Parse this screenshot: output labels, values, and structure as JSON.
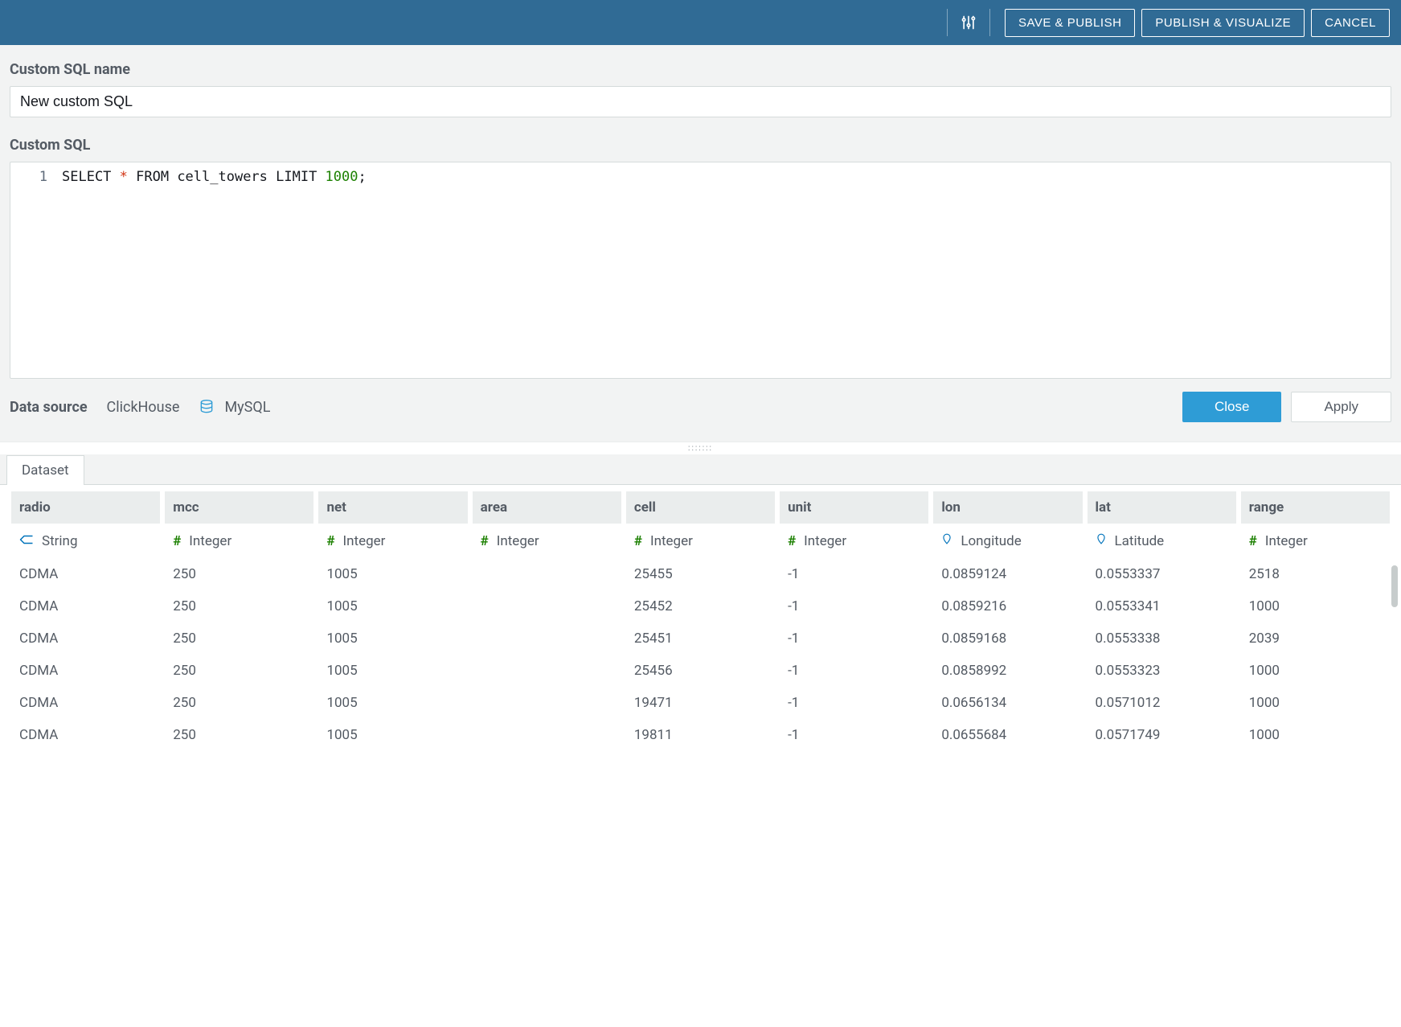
{
  "topbar": {
    "save_publish": "SAVE & PUBLISH",
    "publish_visualize": "PUBLISH & VISUALIZE",
    "cancel": "CANCEL"
  },
  "labels": {
    "custom_sql_name": "Custom SQL name",
    "custom_sql": "Custom SQL",
    "data_source": "Data source"
  },
  "inputs": {
    "sql_name_value": "New custom SQL"
  },
  "editor": {
    "line_no": "1",
    "tokens": {
      "select": "SELECT ",
      "star": "*",
      "from": " FROM cell_towers LIMIT ",
      "limit": "1000",
      "semi": ";"
    }
  },
  "datasource": {
    "name": "ClickHouse",
    "engine": "MySQL"
  },
  "actions": {
    "close": "Close",
    "apply": "Apply"
  },
  "tab": {
    "dataset": "Dataset"
  },
  "table": {
    "columns": [
      {
        "name": "radio",
        "type": "String",
        "icon": "string"
      },
      {
        "name": "mcc",
        "type": "Integer",
        "icon": "int"
      },
      {
        "name": "net",
        "type": "Integer",
        "icon": "int"
      },
      {
        "name": "area",
        "type": "Integer",
        "icon": "int"
      },
      {
        "name": "cell",
        "type": "Integer",
        "icon": "int"
      },
      {
        "name": "unit",
        "type": "Integer",
        "icon": "int"
      },
      {
        "name": "lon",
        "type": "Longitude",
        "icon": "geo"
      },
      {
        "name": "lat",
        "type": "Latitude",
        "icon": "geo"
      },
      {
        "name": "range",
        "type": "Integer",
        "icon": "int"
      }
    ],
    "rows": [
      [
        "CDMA",
        "250",
        "1005",
        "",
        "25455",
        "-1",
        "0.0859124",
        "0.0553337",
        "2518"
      ],
      [
        "CDMA",
        "250",
        "1005",
        "",
        "25452",
        "-1",
        "0.0859216",
        "0.0553341",
        "1000"
      ],
      [
        "CDMA",
        "250",
        "1005",
        "",
        "25451",
        "-1",
        "0.0859168",
        "0.0553338",
        "2039"
      ],
      [
        "CDMA",
        "250",
        "1005",
        "",
        "25456",
        "-1",
        "0.0858992",
        "0.0553323",
        "1000"
      ],
      [
        "CDMA",
        "250",
        "1005",
        "",
        "19471",
        "-1",
        "0.0656134",
        "0.0571012",
        "1000"
      ],
      [
        "CDMA",
        "250",
        "1005",
        "",
        "19811",
        "-1",
        "0.0655684",
        "0.0571749",
        "1000"
      ]
    ]
  },
  "colors": {
    "topbar_bg": "#306b95",
    "primary_btn": "#2e9cd6",
    "int_icon": "#1d8102",
    "geo_icon": "#0073bb",
    "text_muted": "#545b64"
  }
}
